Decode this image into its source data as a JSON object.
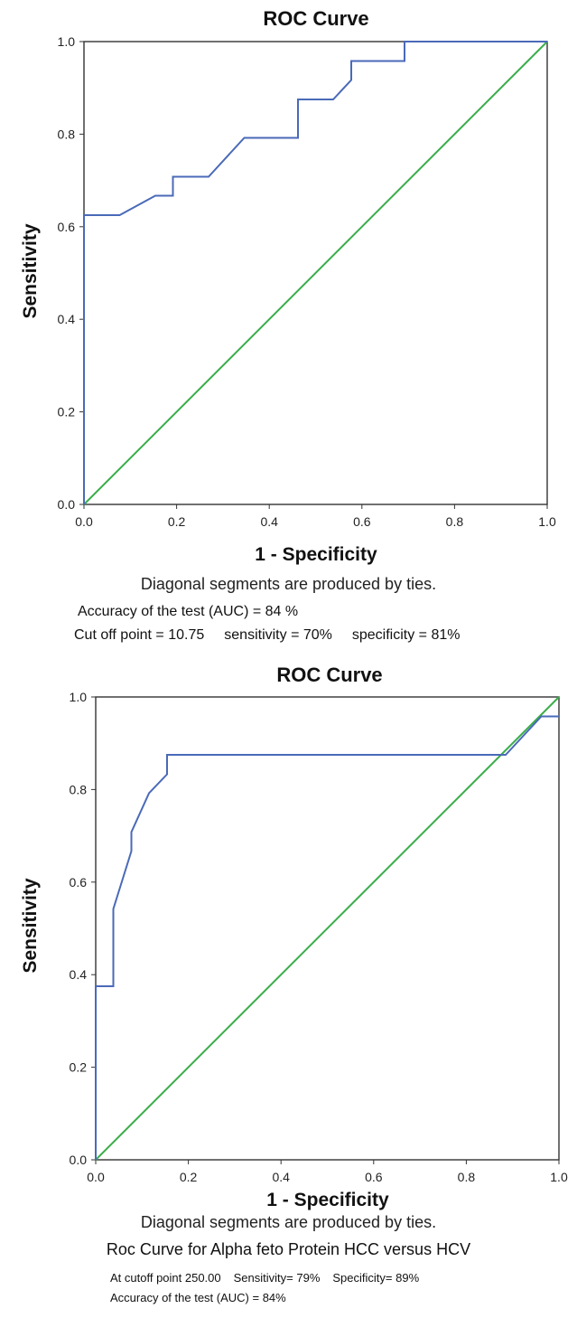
{
  "chart_data": [
    {
      "type": "line",
      "title": "ROC Curve",
      "xlabel": "1 - Specificity",
      "ylabel": "Sensitivity",
      "xlim": [
        0,
        1
      ],
      "ylim": [
        0,
        1
      ],
      "x_ticks": [
        "0.0",
        "0.2",
        "0.4",
        "0.6",
        "0.8",
        "1.0"
      ],
      "y_ticks": [
        "0.0",
        "0.2",
        "0.4",
        "0.6",
        "0.8",
        "1.0"
      ],
      "grid": false,
      "legend": "none",
      "colors": {
        "roc": "#4a6ab8",
        "reference": "#3aae4a",
        "axes": "#333333"
      },
      "series": [
        {
          "x": [
            0.0,
            0.0,
            0.077,
            0.154,
            0.192,
            0.192,
            0.269,
            0.346,
            0.462,
            0.462,
            0.538,
            0.577,
            0.577,
            0.692,
            0.692,
            1.0
          ],
          "y": [
            0.0,
            0.625,
            0.625,
            0.667,
            0.667,
            0.708,
            0.708,
            0.792,
            0.792,
            0.875,
            0.875,
            0.917,
            0.958,
            0.958,
            1.0,
            1.0
          ]
        },
        {
          "x": [
            0.0,
            1.0
          ],
          "y": [
            0.0,
            1.0
          ]
        }
      ]
    },
    {
      "type": "line",
      "title": "ROC Curve",
      "xlabel": "1 - Specificity",
      "ylabel": "Sensitivity",
      "xlim": [
        0,
        1
      ],
      "ylim": [
        0,
        1
      ],
      "x_ticks": [
        "0.0",
        "0.2",
        "0.4",
        "0.6",
        "0.8",
        "1.0"
      ],
      "y_ticks": [
        "0.0",
        "0.2",
        "0.4",
        "0.6",
        "0.8",
        "1.0"
      ],
      "grid": false,
      "legend": "none",
      "colors": {
        "roc": "#4a6ab8",
        "reference": "#3aae4a",
        "axes": "#333333"
      },
      "series": [
        {
          "x": [
            0.0,
            0.0,
            0.038,
            0.038,
            0.077,
            0.077,
            0.115,
            0.154,
            0.154,
            0.885,
            0.962,
            1.0
          ],
          "y": [
            0.0,
            0.375,
            0.375,
            0.542,
            0.667,
            0.708,
            0.792,
            0.833,
            0.875,
            0.875,
            0.958,
            0.958
          ]
        },
        {
          "x": [
            0.0,
            1.0
          ],
          "y": [
            0.0,
            1.0
          ]
        }
      ]
    }
  ],
  "panel_top": {
    "note": "Diagonal segments are produced by ties.",
    "accuracy": "Accuracy of the test (AUC) = 84 %",
    "cutoff": "Cut off point  = 10.75",
    "sensitivity": "sensitivity  = 70%",
    "specificity": "specificity = 81%"
  },
  "panel_bottom": {
    "note": "Diagonal segments are produced by ties.",
    "caption": "Roc Curve for Alpha feto Protein HCC versus HCV",
    "cutoff": "At cutoff point 250.00",
    "sensitivity": "Sensitivity= 79%",
    "specificity": "Specificity= 89%",
    "accuracy": "Accuracy of the test (AUC) = 84%"
  }
}
